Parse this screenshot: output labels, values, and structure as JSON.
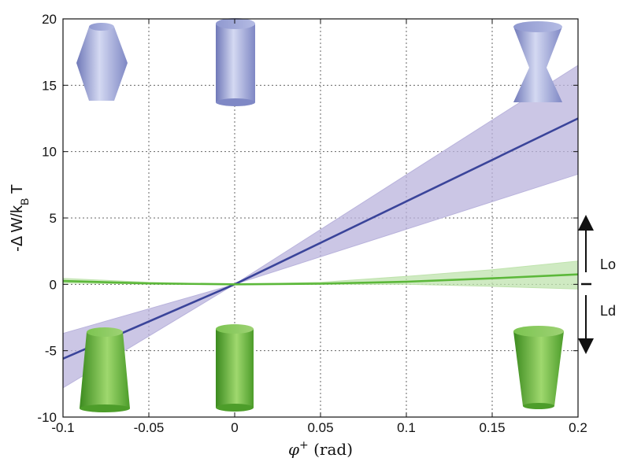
{
  "chart_data": {
    "type": "line",
    "xlabel": "φ⁺ (rad)",
    "ylabel": "-Δ W/k_B T",
    "xlim": [
      -0.1,
      0.2
    ],
    "ylim": [
      -10,
      20
    ],
    "xticks": [
      "-0.1",
      "-0.05",
      "0",
      "0.05",
      "0.1",
      "0.15",
      "0.2"
    ],
    "yticks": [
      "-10",
      "-5",
      "0",
      "5",
      "10",
      "15",
      "20"
    ],
    "grid": true,
    "colors": {
      "blue": "#3a449a",
      "blue_band": "#b9b3dc",
      "green": "#5cb83a",
      "green_band": "#bfe3ad"
    },
    "series": [
      {
        "x": [
          -0.1,
          0,
          0.2
        ],
        "y": [
          -5.6,
          0,
          12.5
        ],
        "band_low": [
          -7.8,
          0,
          8.3
        ],
        "band_high": [
          -3.7,
          0,
          16.5
        ]
      },
      {
        "x": [
          -0.1,
          -0.05,
          0,
          0.05,
          0.1,
          0.15,
          0.2
        ],
        "y": [
          0.25,
          0.07,
          0,
          0.05,
          0.2,
          0.45,
          0.75
        ],
        "band_low": [
          0.1,
          0.02,
          0,
          0.0,
          0.0,
          -0.15,
          -0.35
        ],
        "band_high": [
          0.45,
          0.15,
          0,
          0.15,
          0.6,
          1.1,
          1.75
        ]
      }
    ],
    "annotations": {
      "upper": "Lo",
      "lower": "Ld"
    }
  }
}
